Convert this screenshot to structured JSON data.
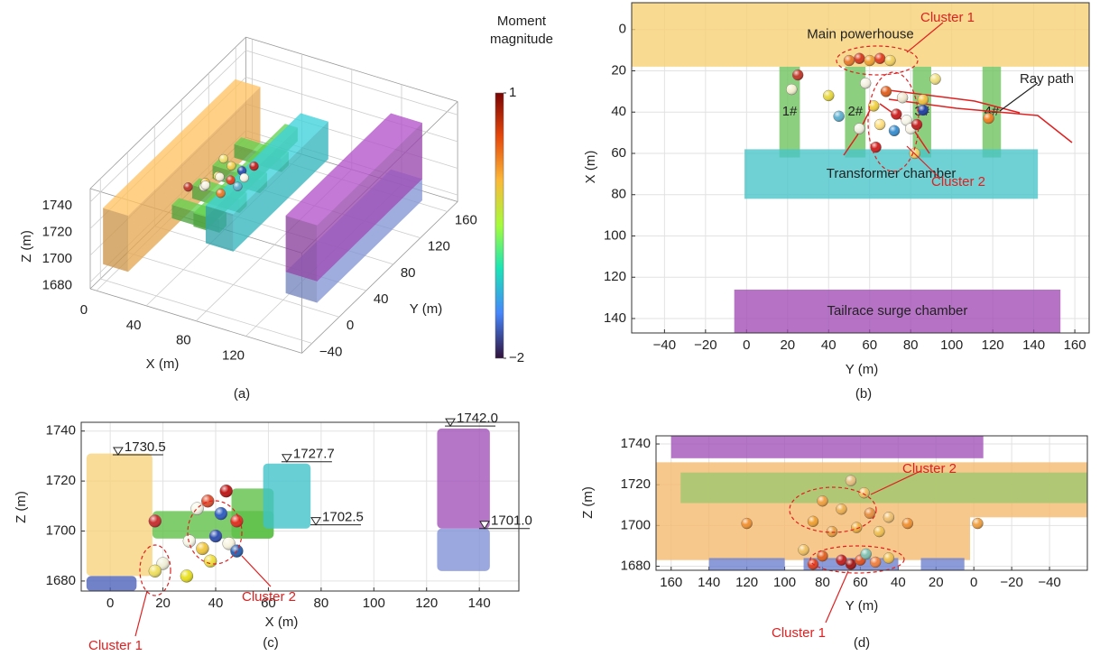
{
  "chart_data": [
    {
      "type": "scatter3d",
      "caption": "(a)",
      "x_label": "X (m)",
      "y_label": "Y (m)",
      "z_label": "Z (m)",
      "xlim": [
        -5,
        165
      ],
      "ylim": [
        -55,
        175
      ],
      "zlim": [
        1675,
        1750
      ],
      "xticks": [
        0,
        40,
        80,
        120
      ],
      "yticks": [
        {
          "value": -40,
          "label": "−40"
        },
        0,
        40,
        80,
        120,
        160
      ],
      "zticks": [
        1680,
        1700,
        1720,
        1740
      ],
      "solids": [
        {
          "x": [
            0,
            20
          ],
          "y": [
            -45,
            150
          ],
          "z": [
            1690,
            1732
          ],
          "color": "#f2b25a"
        },
        {
          "x": [
            20,
            58
          ],
          "y": [
            20,
            30
          ],
          "z": [
            1698,
            1708
          ],
          "color": "#5cc04a"
        },
        {
          "x": [
            20,
            58
          ],
          "y": [
            50,
            60
          ],
          "z": [
            1698,
            1708
          ],
          "color": "#5cc04a"
        },
        {
          "x": [
            20,
            58
          ],
          "y": [
            80,
            90
          ],
          "z": [
            1698,
            1708
          ],
          "color": "#5cc04a"
        },
        {
          "x": [
            20,
            58
          ],
          "y": [
            112,
            122
          ],
          "z": [
            1698,
            1708
          ],
          "color": "#5cc04a"
        },
        {
          "x": [
            40,
            50
          ],
          "y": [
            15,
            150
          ],
          "z": [
            1700,
            1710
          ],
          "color": "#5cc04a"
        },
        {
          "x": [
            58,
            80
          ],
          "y": [
            0,
            140
          ],
          "z": [
            1700,
            1728
          ],
          "color": "#39c0c8"
        },
        {
          "x": [
            125,
            150
          ],
          "y": [
            -5,
            150
          ],
          "z": [
            1684,
            1700
          ],
          "color": "#8c9ee0"
        },
        {
          "x": [
            125,
            150
          ],
          "y": [
            -5,
            150
          ],
          "z": [
            1700,
            1742
          ],
          "color": "#a34cb8"
        }
      ],
      "points": {
        "x": [
          22,
          28,
          35,
          30,
          42,
          26,
          38,
          48,
          33,
          45,
          24,
          52,
          36,
          40
        ],
        "y": [
          40,
          52,
          60,
          72,
          66,
          85,
          90,
          75,
          45,
          95,
          62,
          58,
          78,
          55
        ],
        "z": [
          1712,
          1708,
          1714,
          1706,
          1710,
          1712,
          1704,
          1709,
          1716,
          1707,
          1703,
          1712,
          1713,
          1705
        ],
        "colors": [
          "#c0392b",
          "#f6f2dc",
          "#e8d840",
          "#f4efd8",
          "#e04020",
          "#f0e070",
          "#2a50b0",
          "#f7f2e2",
          "#f0c040",
          "#c02020",
          "#f4f0e0",
          "#60b0d0",
          "#f0d050",
          "#e87a2a"
        ]
      },
      "colorbar": {
        "title": "Moment magnitude",
        "clim": [
          -2,
          1
        ],
        "ticks": [
          1,
          {
            "value": -2,
            "label": "−2"
          }
        ]
      }
    },
    {
      "type": "scatter",
      "caption": "(b)",
      "x_label": "Y (m)",
      "y_label": "X (m)",
      "xlim": [
        -56,
        167
      ],
      "ylim": [
        -13,
        147
      ],
      "y_reversed": true,
      "grid": true,
      "xticks": [
        {
          "value": -40,
          "label": "−40"
        },
        {
          "value": -20,
          "label": "−20"
        },
        0,
        20,
        40,
        60,
        80,
        100,
        120,
        140,
        160
      ],
      "yticks": [
        0,
        20,
        40,
        60,
        80,
        100,
        120,
        140
      ],
      "regions": [
        {
          "label": "Main powerhouse",
          "x": [
            -56,
            167
          ],
          "y": [
            -13,
            18
          ],
          "color": "#f7cf72"
        },
        {
          "label": "1#",
          "x": [
            16,
            26
          ],
          "y": [
            18,
            62
          ],
          "color": "#6cc25a"
        },
        {
          "label": "2#",
          "x": [
            48,
            58
          ],
          "y": [
            18,
            62
          ],
          "color": "#6cc25a"
        },
        {
          "label": "3#",
          "x": [
            81,
            90
          ],
          "y": [
            18,
            62
          ],
          "color": "#6cc25a"
        },
        {
          "label": "4#",
          "x": [
            115,
            124
          ],
          "y": [
            18,
            62
          ],
          "color": "#6cc25a"
        },
        {
          "label": "Transformer chamber",
          "x": [
            -1,
            142
          ],
          "y": [
            58,
            82
          ],
          "color": "#46c4c8"
        },
        {
          "label": "Tailrace surge chamber",
          "x": [
            -6,
            153
          ],
          "y": [
            126,
            147
          ],
          "color": "#a14bb5"
        }
      ],
      "points": {
        "x": [
          25,
          22,
          40,
          50,
          55,
          60,
          65,
          70,
          58,
          62,
          68,
          73,
          78,
          65,
          72,
          80,
          86,
          83,
          63,
          55,
          45,
          86,
          118,
          82,
          76,
          92
        ],
        "y": [
          22,
          29,
          32,
          15,
          14,
          15,
          14,
          15,
          26,
          37,
          30,
          41,
          44,
          46,
          49,
          48,
          39,
          46,
          57,
          48,
          42,
          34,
          43,
          60,
          33,
          24
        ],
        "colors": [
          "#c0392b",
          "#f5f0d0",
          "#e8d840",
          "#e87a2a",
          "#d63c1e",
          "#f0a030",
          "#e04020",
          "#f2d060",
          "#f4f0e0",
          "#f0d040",
          "#e06020",
          "#cc2020",
          "#f5f5e8",
          "#ffe080",
          "#3a8fd0",
          "#f8f4e6",
          "#2040a0",
          "#c02020",
          "#d02020",
          "#f0f0e0",
          "#60b0d0",
          "#f0c040",
          "#f08020",
          "#f0d060",
          "#f0e8d0",
          "#f0e080"
        ]
      },
      "annotations": [
        "Cluster 1",
        "Ray path",
        "Cluster 2"
      ]
    },
    {
      "type": "scatter",
      "caption": "(c)",
      "x_label": "X (m)",
      "y_label": "Z (m)",
      "xlim": [
        -11,
        155
      ],
      "ylim": [
        1676,
        1743.5
      ],
      "grid": true,
      "xticks": [
        0,
        20,
        40,
        60,
        80,
        100,
        120,
        140
      ],
      "yticks": [
        1680,
        1700,
        1720,
        1740
      ],
      "regions": [
        {
          "x": [
            -9,
            16
          ],
          "y": [
            1682,
            1731
          ],
          "color": "#f7d27a"
        },
        {
          "x": [
            -9,
            10
          ],
          "y": [
            1676,
            1682
          ],
          "color": "#4a5fb8"
        },
        {
          "x": [
            16,
            62
          ],
          "y": [
            1697,
            1708
          ],
          "color": "#5cbf45"
        },
        {
          "x": [
            46,
            62
          ],
          "y": [
            1697,
            1717
          ],
          "color": "#5cbf45"
        },
        {
          "x": [
            58,
            76
          ],
          "y": [
            1701,
            1727
          ],
          "color": "#3ec3c9"
        },
        {
          "x": [
            124,
            144
          ],
          "y": [
            1701,
            1741
          ],
          "color": "#a050b8"
        },
        {
          "x": [
            124,
            144
          ],
          "y": [
            1684,
            1701
          ],
          "color": "#7f8fd6"
        }
      ],
      "levels": [
        {
          "x": 3,
          "value": 1730.5,
          "label": "1730.5"
        },
        {
          "x": 67,
          "value": 1727.7,
          "label": "1727.7"
        },
        {
          "x": 78,
          "value": 1702.5,
          "label": "1702.5"
        },
        {
          "x": 129,
          "value": 1742.0,
          "label": "1742.0"
        },
        {
          "x": 142,
          "value": 1701.0,
          "label": "1701.0"
        }
      ],
      "points": {
        "x": [
          17,
          20,
          17,
          29,
          30,
          35,
          40,
          45,
          48,
          38,
          37,
          44,
          42,
          48,
          33
        ],
        "y": [
          1704,
          1687,
          1684,
          1682,
          1696,
          1693,
          1698,
          1695,
          1692,
          1688,
          1712,
          1716,
          1707,
          1704,
          1709
        ],
        "colors": [
          "#c83030",
          "#f0f0d8",
          "#f0e060",
          "#e8e020",
          "#f8f8e8",
          "#f0c840",
          "#3050b0",
          "#f8f4e0",
          "#2a60b0",
          "#f0e040",
          "#e05030",
          "#c01818",
          "#3060c0",
          "#e03020",
          "#f8f8e8"
        ]
      },
      "annotations": [
        "Cluster 1",
        "Cluster 2"
      ]
    },
    {
      "type": "scatter",
      "caption": "(d)",
      "x_label": "Y (m)",
      "y_label": "Z (m)",
      "xlim": [
        168,
        -60
      ],
      "ylim": [
        1678,
        1744
      ],
      "grid": true,
      "xticks": [
        160,
        140,
        120,
        100,
        80,
        60,
        40,
        20,
        0,
        {
          "value": -20,
          "label": "−20"
        },
        {
          "value": -40,
          "label": "−40"
        }
      ],
      "yticks": [
        1680,
        1700,
        1720,
        1740
      ],
      "regions": [
        {
          "x": [
            160,
            -5
          ],
          "y": [
            1733,
            1744
          ],
          "color": "#a050b8"
        },
        {
          "x": [
            168,
            2
          ],
          "y": [
            1683,
            1731
          ],
          "color": "#f5b86a"
        },
        {
          "x": [
            2,
            -60
          ],
          "y": [
            1704,
            1731
          ],
          "color": "#f5b86a"
        },
        {
          "x": [
            155,
            -60
          ],
          "y": [
            1711,
            1726
          ],
          "color": "#9cc870"
        },
        {
          "x": [
            140,
            100
          ],
          "y": [
            1678,
            1684
          ],
          "color": "#6a7fd0"
        },
        {
          "x": [
            90,
            40
          ],
          "y": [
            1678,
            1684
          ],
          "color": "#6a7fd0"
        },
        {
          "x": [
            28,
            5
          ],
          "y": [
            1678,
            1684
          ],
          "color": "#6a7fd0"
        }
      ],
      "points": {
        "x": [
          65,
          58,
          80,
          70,
          55,
          45,
          85,
          62,
          75,
          50,
          35,
          120,
          -2,
          90,
          80,
          70,
          65,
          60,
          52,
          45,
          85,
          57
        ],
        "y": [
          1722,
          1716,
          1712,
          1708,
          1706,
          1704,
          1702,
          1699,
          1697,
          1697,
          1701,
          1701,
          1701,
          1688,
          1685,
          1683,
          1681,
          1683,
          1682,
          1684,
          1681,
          1686
        ],
        "colors": [
          "#e8c080",
          "#f0c060",
          "#f0a040",
          "#f0b050",
          "#e89040",
          "#f0c070",
          "#f0a030",
          "#f0b040",
          "#e8a040",
          "#f0c050",
          "#f09030",
          "#f09030",
          "#f0a040",
          "#f0c060",
          "#e06020",
          "#c02020",
          "#a01818",
          "#e05020",
          "#f08040",
          "#f0c050",
          "#e04020",
          "#80c0b0"
        ]
      },
      "annotations": [
        "Cluster 2",
        "Cluster 1"
      ]
    }
  ]
}
